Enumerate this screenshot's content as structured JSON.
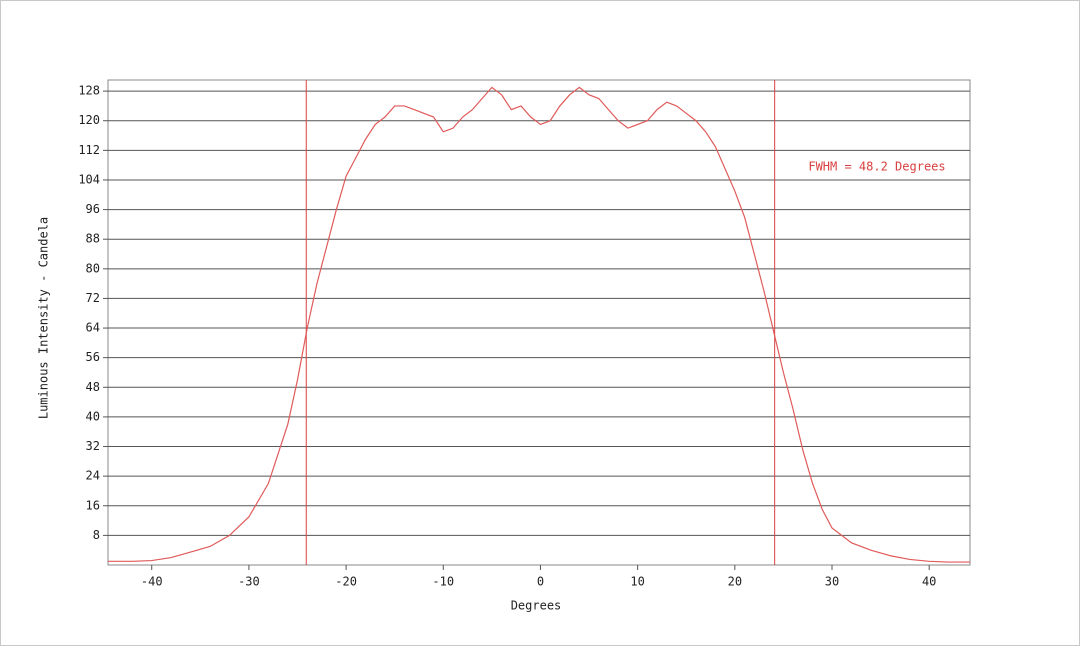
{
  "chart_data": {
    "type": "line",
    "xlabel": "Degrees",
    "ylabel": "Luminous Intensity - Candela",
    "annotation": "FWHM = 48.2 Degrees",
    "x": [
      -44.5,
      -42,
      -40,
      -38,
      -36,
      -34,
      -32,
      -30,
      -28,
      -26,
      -25,
      -24,
      -23,
      -22,
      -21,
      -20,
      -19,
      -18,
      -17,
      -16,
      -15,
      -14,
      -13,
      -12,
      -11,
      -10,
      -9,
      -8,
      -7,
      -6,
      -5,
      -4,
      -3,
      -2,
      -1,
      0,
      1,
      2,
      3,
      4,
      5,
      6,
      7,
      8,
      9,
      10,
      11,
      12,
      13,
      14,
      15,
      16,
      17,
      18,
      19,
      20,
      21,
      22,
      23,
      24,
      25,
      26,
      27,
      28,
      29,
      30,
      32,
      34,
      36,
      38,
      40,
      42,
      44.2
    ],
    "series": [
      {
        "name": "Intensity",
        "color": "#e05a5a",
        "values": [
          1,
          1,
          1.2,
          2,
          3.5,
          5,
          8,
          13,
          22,
          38,
          50,
          64,
          76,
          86,
          96,
          105,
          110,
          115,
          119,
          121,
          124,
          124,
          123,
          122,
          121,
          117,
          118,
          121,
          123,
          126,
          129,
          127,
          123,
          124,
          121,
          119,
          120,
          124,
          127,
          129,
          127,
          126,
          123,
          120,
          118,
          119,
          120,
          123,
          125,
          124,
          122,
          120,
          117,
          113,
          107,
          101,
          94,
          84,
          74,
          63,
          52,
          42,
          31,
          22,
          15,
          10,
          6,
          4,
          2.5,
          1.5,
          1,
          0.8,
          0.8
        ]
      }
    ],
    "vlines": [
      -24.1,
      24.1
    ],
    "vline_color": "#d94040",
    "xlim": [
      -44.5,
      44.2
    ],
    "ylim": [
      0,
      131
    ],
    "xticks": [
      -40,
      -30,
      -20,
      -10,
      0,
      10,
      20,
      30,
      40
    ],
    "yticks": [
      8,
      16,
      24,
      32,
      40,
      48,
      56,
      64,
      72,
      80,
      88,
      96,
      104,
      112,
      120,
      128
    ],
    "grid": true
  }
}
